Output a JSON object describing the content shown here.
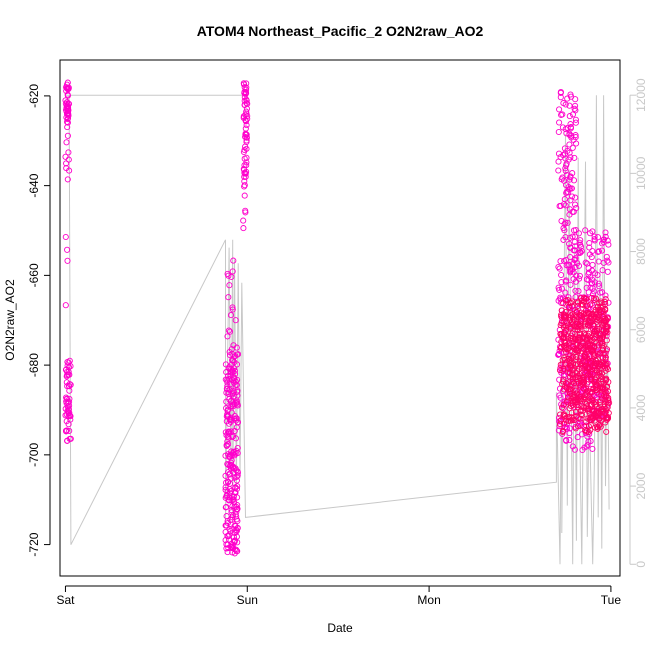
{
  "chart_data": {
    "type": "scatter",
    "title": "ATOM4 Northeast_Pacific_2 O2N2raw_AO2",
    "xlabel": "Date",
    "ylabel": "O2N2raw_AO2",
    "x_tick_labels": [
      "Sat",
      "Sun",
      "Mon",
      "Tue"
    ],
    "x_range_days": [
      -0.03,
      3.05
    ],
    "y_range": [
      -727,
      -612
    ],
    "y_ticks": [
      -720,
      -700,
      -680,
      -660,
      -640,
      -620
    ],
    "y2_range": [
      -300,
      12900
    ],
    "y2_ticks": [
      0,
      2000,
      4000,
      6000,
      8000,
      10000,
      12000
    ],
    "grid": false,
    "colors": {
      "point_magenta": "#ff00cc",
      "point_pink": "#ff0066",
      "line_gray": "#c8c8c8",
      "axis": "#000000"
    },
    "series": [
      {
        "marker": "open-circle",
        "color": "#ff00cc",
        "clusters": [
          {
            "x": [
              0.0,
              0.02
            ],
            "y": [
              -626,
              -617
            ],
            "n": 40
          },
          {
            "x": [
              0.0,
              0.02
            ],
            "y": [
              -647,
              -626
            ],
            "n": 10
          },
          {
            "x": [
              0.0,
              0.02
            ],
            "y": [
              -672,
              -650
            ],
            "n": 4
          },
          {
            "x": [
              0.0,
              0.03
            ],
            "y": [
              -697,
              -679
            ],
            "n": 55
          },
          {
            "x": [
              0.98,
              1.0
            ],
            "y": [
              -640,
              -617
            ],
            "n": 60
          },
          {
            "x": [
              0.97,
              0.99
            ],
            "y": [
              -650,
              -640
            ],
            "n": 6
          },
          {
            "x": [
              0.88,
              0.95
            ],
            "y": [
              -722,
              -676
            ],
            "n": 250
          },
          {
            "x": [
              0.89,
              0.94
            ],
            "y": [
              -676,
              -655
            ],
            "n": 15
          },
          {
            "x": [
              2.71,
              2.78
            ],
            "y": [
              -660,
              -618
            ],
            "n": 70
          },
          {
            "x": [
              2.71,
              2.78
            ],
            "y": [
              -697,
              -660
            ],
            "n": 90
          },
          {
            "x": [
              2.77,
              2.81
            ],
            "y": [
              -660,
              -620
            ],
            "n": 55
          },
          {
            "x": [
              2.79,
              2.9
            ],
            "y": [
              -699,
              -648
            ],
            "n": 130
          },
          {
            "x": [
              2.88,
              2.99
            ],
            "y": [
              -692,
              -650
            ],
            "n": 110
          }
        ]
      },
      {
        "marker": "open-circle",
        "color": "#ff0066",
        "clusters": [
          {
            "x": [
              2.72,
              2.98
            ],
            "y": [
              -695,
              -665
            ],
            "n": 420
          },
          {
            "x": [
              2.77,
              2.99
            ],
            "y": [
              -692,
              -668
            ],
            "n": 240
          }
        ]
      }
    ],
    "secondary_series": {
      "type": "line",
      "color": "#c8c8c8",
      "axis": "right",
      "x": [
        0.0,
        0.99,
        0.995,
        0.02,
        0.03,
        0.88,
        0.88,
        0.9,
        0.91,
        0.92,
        0.92,
        0.93,
        0.94,
        0.95,
        0.96,
        0.97,
        0.99,
        2.7,
        2.7,
        2.72,
        2.73,
        2.73,
        2.75,
        2.76,
        2.77,
        2.79,
        2.8,
        2.81,
        2.82,
        2.83,
        2.84,
        2.86,
        2.87,
        2.88,
        2.9,
        2.91,
        2.92,
        2.93,
        2.94,
        2.95,
        2.96,
        2.97,
        2.98,
        2.99
      ],
      "y": [
        12000,
        12000,
        12000,
        12000,
        500,
        8300,
        1000,
        8100,
        2500,
        8300,
        1200,
        7800,
        2000,
        7700,
        2200,
        7200,
        1200,
        2100,
        4400,
        0,
        5500,
        800,
        11000,
        1500,
        10100,
        0,
        8200,
        600,
        10400,
        3000,
        0,
        10300,
        700,
        4200,
        0,
        2800,
        12000,
        1200,
        7500,
        400,
        12000,
        2000,
        6200,
        1400
      ]
    }
  }
}
